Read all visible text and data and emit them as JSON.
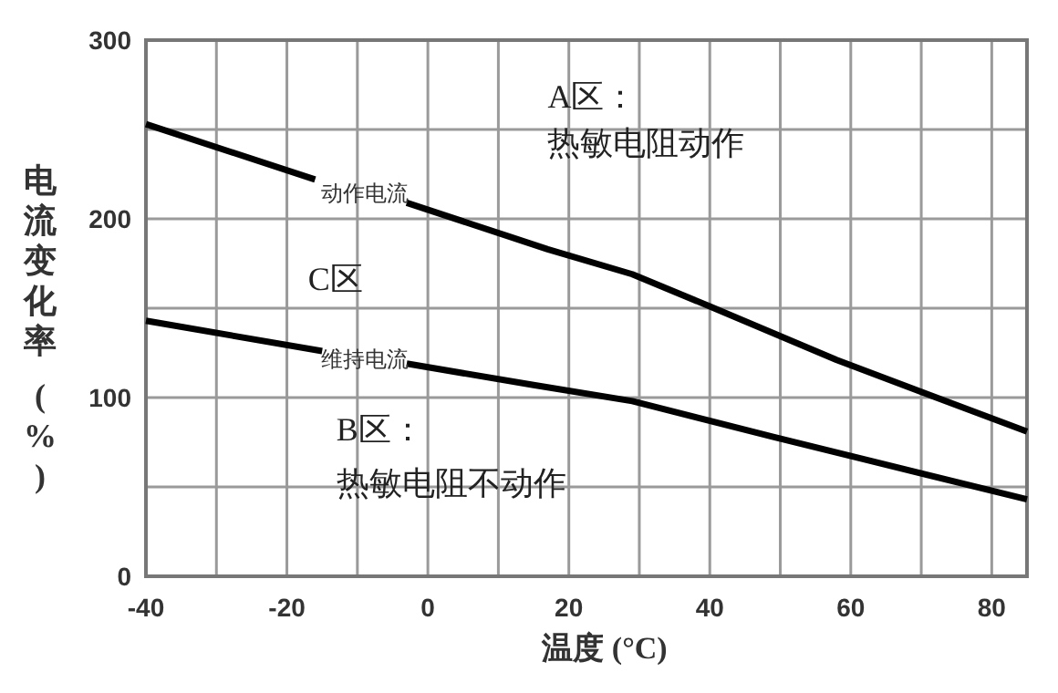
{
  "chart_data": {
    "type": "line",
    "xlabel": "温度 (°C)",
    "ylabel": "电流变化率 (%)",
    "xlim": [
      -40,
      85
    ],
    "ylim": [
      0,
      300
    ],
    "xticks": [
      -40,
      {
        "value": -30,
        "label": null
      },
      -20,
      {
        "value": -10,
        "label": null
      },
      0,
      {
        "value": 10,
        "label": null
      },
      20,
      {
        "value": 30,
        "label": null
      },
      40,
      {
        "value": 50,
        "label": null
      },
      60,
      {
        "value": 70,
        "label": null
      },
      80
    ],
    "yticks": [
      0,
      {
        "value": 50,
        "label": null
      },
      100,
      {
        "value": 150,
        "label": null
      },
      200,
      {
        "value": 250,
        "label": null
      },
      300
    ],
    "grid": true,
    "series": [
      {
        "name": "动作电流",
        "color": "#000000",
        "x": [
          -40,
          -16,
          -9,
          -3,
          17,
          29,
          40,
          58,
          85
        ],
        "values": [
          253,
          222,
          null,
          209,
          183,
          169,
          151,
          121,
          81
        ]
      },
      {
        "name": "维持电流",
        "color": "#000000",
        "x": [
          -40,
          -15,
          -9,
          -3,
          15,
          29,
          49,
          85
        ],
        "values": [
          143,
          126,
          null,
          119,
          107,
          98,
          78,
          43
        ]
      }
    ],
    "annotations": [
      "A区：",
      "热敏电阻动作",
      "C区",
      "B区：",
      "热敏电阻不动作"
    ]
  }
}
